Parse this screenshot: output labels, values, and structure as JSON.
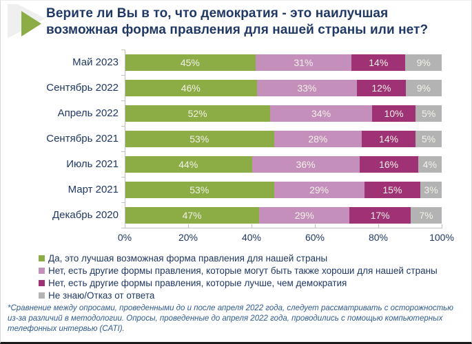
{
  "header": {
    "title": "Верите ли Вы в то, что демократия - это наилучшая возможная форма правления для нашей страны или нет?"
  },
  "chart_data": {
    "type": "bar",
    "orientation": "horizontal",
    "stacked": true,
    "title": "Верите ли Вы в то, что демократия - это наилучшая возможная форма правления для нашей страны или нет?",
    "categories": [
      "Май 2023",
      "Сентябрь 2022",
      "Апрель 2022",
      "Сентябрь 2021",
      "Июль 2021",
      "Март 2021",
      "Декабрь 2020"
    ],
    "series": [
      {
        "name": "Да, это лучшая возможная форма правления для нашей страны",
        "color": "#8CAC45",
        "values": [
          45,
          46,
          52,
          53,
          44,
          53,
          47
        ]
      },
      {
        "name": "Нет, есть другие формы правления, которые могут быть также хороши для нашей страны",
        "color": "#C48FBB",
        "values": [
          31,
          33,
          34,
          28,
          36,
          29,
          29
        ]
      },
      {
        "name": "Нет, есть другие формы правления, которые лучше, чем демократия",
        "color": "#9E3274",
        "values": [
          14,
          12,
          10,
          14,
          16,
          15,
          17
        ]
      },
      {
        "name": "Не знаю/Отказ от ответа",
        "color": "#B3B3B3",
        "values": [
          9,
          9,
          5,
          5,
          4,
          3,
          7
        ]
      }
    ],
    "value_suffix": "%",
    "x_ticks": [
      "0%",
      "20%",
      "40%",
      "60%",
      "80%",
      "100%"
    ],
    "xlim": [
      0,
      100
    ],
    "grid": false,
    "legend_position": "bottom",
    "axis_color": "#BFBFBF",
    "label_color": "#1F3864",
    "bar_value_color": "#F2F1E8"
  },
  "accent": {
    "arrow_green": "#8CAC45",
    "arrow_shadow": "#EFEFEF"
  },
  "footnote": {
    "text": "*Сравнение между опросами, проведенными до и после апреля 2022 года, следует рассматривать с осторожностью из-за различий в методологии. Опросы, проведенные до апреля 2022 года, проводились с помощью компьютерных телефонных интервью (CATI)."
  }
}
